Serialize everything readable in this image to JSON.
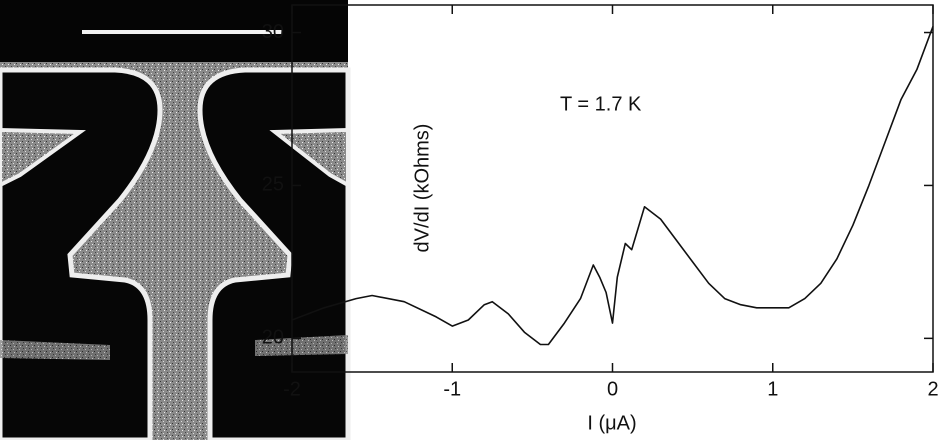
{
  "chart_data": {
    "type": "line",
    "annotation": "T = 1.7 K",
    "x_label": "I (μA)",
    "y_label": "dV/dI (kOhms)",
    "xlim": [
      -2,
      2
    ],
    "ylim": [
      18.9,
      30.9
    ],
    "xticks": [
      -2,
      -1,
      0,
      1,
      2
    ],
    "yticks": [
      20,
      25,
      30
    ],
    "series": [
      {
        "color": "#111111",
        "x": [
          -2,
          -1.8,
          -1.6,
          -1.5,
          -1.3,
          -1.1,
          -1.0,
          -0.9,
          -0.8,
          -0.75,
          -0.65,
          -0.55,
          -0.45,
          -0.4,
          -0.3,
          -0.2,
          -0.12,
          -0.08,
          -0.04,
          0,
          0.03,
          0.08,
          0.12,
          0.2,
          0.3,
          0.4,
          0.5,
          0.6,
          0.7,
          0.8,
          0.9,
          1.0,
          1.1,
          1.2,
          1.3,
          1.4,
          1.5,
          1.6,
          1.7,
          1.8,
          1.9,
          2.0
        ],
        "values": [
          20.6,
          21.0,
          21.3,
          21.4,
          21.2,
          20.7,
          20.4,
          20.6,
          21.1,
          21.2,
          20.8,
          20.2,
          19.8,
          19.8,
          20.5,
          21.3,
          22.4,
          22.0,
          21.5,
          20.5,
          22.0,
          23.1,
          22.9,
          24.3,
          23.9,
          23.2,
          22.5,
          21.8,
          21.3,
          21.1,
          21.0,
          21.0,
          21.0,
          21.3,
          21.8,
          22.6,
          23.7,
          25.0,
          26.4,
          27.8,
          28.8,
          30.2
        ]
      }
    ]
  }
}
